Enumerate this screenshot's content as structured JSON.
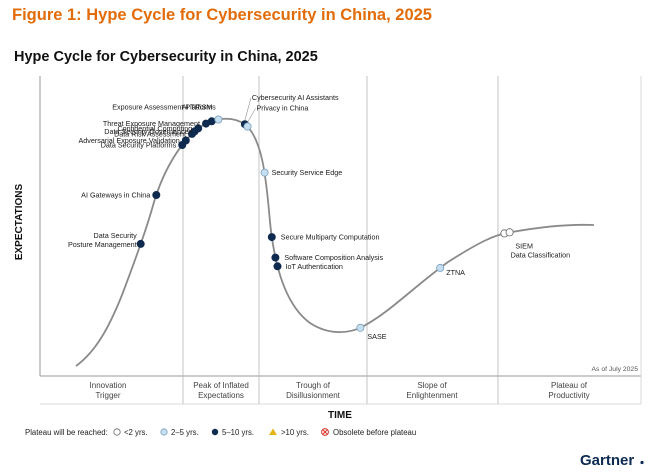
{
  "figure_caption": "Figure 1: Hype Cycle for Cybersecurity in China, 2025",
  "brand": "Gartner",
  "colors": {
    "caption": "#e36c0a",
    "dark_dot": "#0f2a4f",
    "light_dot": "#c6dff0",
    "white_dot": "#ffffff",
    "curve": "#8a8a8a",
    "warning": "#e7b416",
    "obsolete": "#d93025"
  },
  "chart_data": {
    "type": "hype-cycle",
    "title": "Hype Cycle for Cybersecurity in China, 2025",
    "xlabel": "TIME",
    "ylabel": "EXPECTATIONS",
    "as_of": "As of July 2025",
    "phases": [
      {
        "line1": "Innovation",
        "line2": "Trigger"
      },
      {
        "line1": "Peak of Inflated",
        "line2": "Expectations"
      },
      {
        "line1": "Trough of",
        "line2": "Disillusionment"
      },
      {
        "line1": "Slope of",
        "line2": "Enlightenment"
      },
      {
        "line1": "Plateau of",
        "line2": "Productivity"
      }
    ],
    "legend": {
      "title": "Plateau will be reached:",
      "items": [
        {
          "label": "<2 yrs.",
          "marker": "white"
        },
        {
          "label": "2–5 yrs.",
          "marker": "light"
        },
        {
          "label": "5–10 yrs.",
          "marker": "dark"
        },
        {
          "label": ">10 yrs.",
          "marker": "triangle"
        },
        {
          "label": "Obsolete before plateau",
          "marker": "obsolete"
        }
      ]
    },
    "technologies": [
      {
        "name": "Data Security",
        "name2": "Posture Management",
        "t": 0.125,
        "plateau": "5–10 yrs."
      },
      {
        "name": "AI Gateways in China",
        "t": 0.155,
        "plateau": "5–10 yrs."
      },
      {
        "name": "Data Security Platforms",
        "t": 0.205,
        "plateau": "5–10 yrs."
      },
      {
        "name": "Adversarial Exposure Validation",
        "t": 0.212,
        "plateau": "5–10 yrs."
      },
      {
        "name": "Data Risk Assessment",
        "t": 0.224,
        "plateau": "5–10 yrs."
      },
      {
        "name": "Data Security Governance",
        "t": 0.229,
        "plateau": "5–10 yrs."
      },
      {
        "name": "Confidential Computing",
        "t": 0.236,
        "plateau": "5–10 yrs."
      },
      {
        "name": "Threat Exposure Management",
        "t": 0.251,
        "plateau": "5–10 yrs."
      },
      {
        "name": "Exposure Assessment Platforms",
        "t": 0.262,
        "plateau": "5–10 yrs."
      },
      {
        "name": "AI TRiSM",
        "t": 0.275,
        "plateau": "2–5 yrs."
      },
      {
        "name": "Cybersecurity AI Assistants",
        "t": 0.326,
        "plateau": "5–10 yrs."
      },
      {
        "name": "Privacy in China",
        "t": 0.331,
        "plateau": "2–5 yrs."
      },
      {
        "name": "Security Service Edge",
        "t": 0.364,
        "plateau": "2–5 yrs."
      },
      {
        "name": "Secure Multiparty Computation",
        "t": 0.378,
        "plateau": "5–10 yrs."
      },
      {
        "name": "Software Composition Analysis",
        "t": 0.385,
        "plateau": "5–10 yrs."
      },
      {
        "name": "IoT Authentication",
        "t": 0.389,
        "plateau": "5–10 yrs."
      },
      {
        "name": "SASE",
        "t": 0.549,
        "plateau": "2–5 yrs."
      },
      {
        "name": "ZTNA",
        "t": 0.703,
        "plateau": "2–5 yrs."
      },
      {
        "name": "SIEM",
        "t": 0.827,
        "plateau": "<2 yrs."
      },
      {
        "name": "Data Classification",
        "t": 0.837,
        "plateau": "<2 yrs."
      }
    ]
  }
}
